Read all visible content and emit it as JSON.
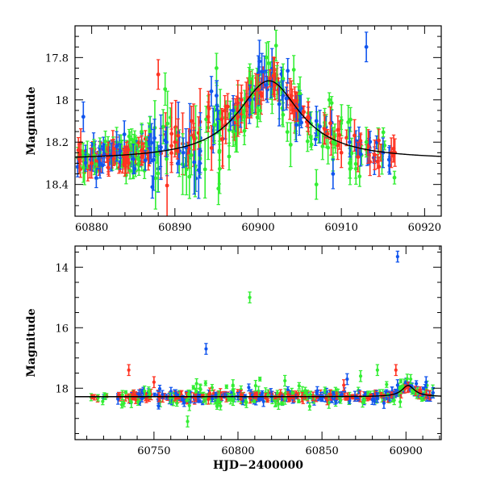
{
  "chart_data": [
    {
      "type": "scatter",
      "title": "",
      "xlabel": "",
      "ylabel": "Magnitude",
      "xlim": [
        60878,
        60922
      ],
      "ylim": [
        18.55,
        17.65
      ],
      "y_inverted": true,
      "xticks": [
        60880,
        60890,
        60900,
        60910,
        60920
      ],
      "yticks": [
        17.8,
        18,
        18.2,
        18.4
      ],
      "ytick_labels": [
        "17.8",
        "18",
        "18.2",
        "18.4"
      ],
      "series_colors": {
        "red": "#ff3322",
        "green": "#33ee33",
        "blue": "#1155ee",
        "model": "#000000"
      },
      "model_curve": {
        "type": "lensing-like peak",
        "baseline": 18.285,
        "peak_time": 60901.3,
        "peak_mag": 17.91,
        "width_days": 4.6
      },
      "points_note": "several hundred photometric points with error bars in three colors clustered around the model curve",
      "sample_points": {
        "red": [
          [
            60878.5,
            18.28
          ],
          [
            60880,
            18.3
          ],
          [
            60882,
            18.27
          ],
          [
            60884,
            18.29
          ],
          [
            60886,
            18.24
          ],
          [
            60888,
            17.88
          ],
          [
            60890,
            18.2
          ],
          [
            60892,
            18.1
          ],
          [
            60894,
            18.08
          ],
          [
            60896,
            18.05
          ],
          [
            60898,
            18.0
          ],
          [
            60900,
            17.95
          ],
          [
            60902,
            17.93
          ],
          [
            60904,
            17.98
          ],
          [
            60906,
            18.08
          ],
          [
            60908,
            18.14
          ],
          [
            60910,
            18.25
          ],
          [
            60912,
            18.27
          ],
          [
            60914,
            18.26
          ],
          [
            60916,
            18.25
          ]
        ],
        "green": [
          [
            60879,
            18.32
          ],
          [
            60881,
            18.25
          ],
          [
            60883,
            18.2
          ],
          [
            60885,
            18.3
          ],
          [
            60887,
            18.15
          ],
          [
            60889,
            18.28
          ],
          [
            60893,
            18.2
          ],
          [
            60895,
            17.85
          ],
          [
            60897,
            18.15
          ],
          [
            60899,
            17.9
          ],
          [
            60901,
            17.8
          ],
          [
            60903,
            17.9
          ],
          [
            60905,
            18.05
          ],
          [
            60907,
            18.4
          ],
          [
            60909,
            18.2
          ],
          [
            60911,
            18.3
          ],
          [
            60913,
            18.2
          ],
          [
            60915,
            18.25
          ]
        ],
        "blue": [
          [
            60879,
            18.08
          ],
          [
            60881,
            18.3
          ],
          [
            60883,
            18.22
          ],
          [
            60885,
            18.28
          ],
          [
            60887,
            18.23
          ],
          [
            60889,
            18.2
          ],
          [
            60891,
            18.25
          ],
          [
            60893,
            18.3
          ],
          [
            60895,
            17.98
          ],
          [
            60897,
            18.05
          ],
          [
            60899,
            18.0
          ],
          [
            60901,
            17.93
          ],
          [
            60903,
            17.98
          ],
          [
            60905,
            18.05
          ],
          [
            60907,
            18.1
          ],
          [
            60909,
            18.35
          ],
          [
            60911,
            18.2
          ],
          [
            60913,
            17.75
          ],
          [
            60915,
            18.25
          ]
        ]
      }
    },
    {
      "type": "scatter",
      "title": "",
      "xlabel": "HJD−2400000",
      "ylabel": "Magnitude",
      "xlim": [
        60703,
        60921
      ],
      "ylim": [
        19.7,
        13.3
      ],
      "y_inverted": true,
      "xticks": [
        60750,
        60800,
        60850,
        60900
      ],
      "yticks": [
        14,
        16,
        18
      ],
      "ytick_labels": [
        "14",
        "16",
        "18"
      ],
      "series_colors": {
        "red": "#ff3322",
        "green": "#33ee33",
        "blue": "#1155ee",
        "model": "#000000"
      },
      "baseline": 18.28,
      "outliers": {
        "blue": [
          [
            60895,
            13.65
          ],
          [
            60781,
            16.7
          ],
          [
            60895,
            17.9
          ],
          [
            60865,
            17.7
          ],
          [
            60912,
            17.8
          ]
        ],
        "green": [
          [
            60807,
            15.0
          ],
          [
            60883,
            17.4
          ],
          [
            60873,
            17.6
          ],
          [
            60797,
            17.9
          ],
          [
            60770,
            19.1
          ]
        ],
        "red": [
          [
            60735,
            17.4
          ],
          [
            60750,
            17.8
          ],
          [
            60894,
            17.4
          ],
          [
            60863,
            17.9
          ]
        ]
      },
      "points_note": "dense band of measurements around magnitude 18.3 from ~60728 to 60916 with sparse early points near 60710-60720"
    }
  ]
}
